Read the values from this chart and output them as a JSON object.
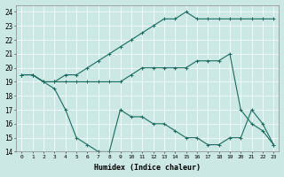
{
  "xlabel": "Humidex (Indice chaleur)",
  "x_ticks": [
    0,
    1,
    2,
    3,
    4,
    5,
    6,
    7,
    8,
    9,
    10,
    11,
    12,
    13,
    14,
    15,
    16,
    17,
    18,
    19,
    20,
    21,
    22,
    23
  ],
  "ylim": [
    14,
    24.5
  ],
  "xlim": [
    -0.5,
    23.5
  ],
  "yticks": [
    14,
    15,
    16,
    17,
    18,
    19,
    20,
    21,
    22,
    23,
    24
  ],
  "bg_color": "#cce8e5",
  "line_color": "#1a6b5e",
  "series": [
    {
      "x": [
        0,
        1,
        2,
        3,
        4,
        5,
        6,
        7,
        8,
        9,
        10,
        11,
        12,
        13,
        14,
        15,
        16,
        17,
        18,
        19,
        20,
        21,
        22,
        23
      ],
      "y": [
        19.5,
        19.5,
        19.0,
        19.0,
        19.5,
        19.5,
        20.0,
        20.5,
        21.0,
        21.5,
        22.0,
        22.5,
        23.0,
        23.5,
        23.5,
        24.0,
        23.5,
        23.5,
        23.5,
        23.5,
        23.5,
        23.5,
        23.5,
        23.5
      ]
    },
    {
      "x": [
        0,
        1,
        2,
        3,
        4,
        5,
        6,
        7,
        8,
        9,
        10,
        11,
        12,
        13,
        14,
        15,
        16,
        17,
        18,
        19,
        20,
        21,
        22,
        23
      ],
      "y": [
        19.5,
        19.5,
        19.0,
        19.0,
        19.0,
        19.0,
        19.0,
        19.0,
        19.0,
        19.0,
        19.5,
        20.0,
        20.0,
        20.0,
        20.0,
        20.0,
        20.5,
        20.5,
        20.5,
        21.0,
        17.0,
        16.0,
        15.5,
        14.5
      ]
    },
    {
      "x": [
        0,
        1,
        2,
        3,
        4,
        5,
        6,
        7,
        8,
        9,
        10,
        11,
        12,
        13,
        14,
        15,
        16,
        17,
        18,
        19,
        20,
        21,
        22,
        23
      ],
      "y": [
        19.5,
        19.5,
        19.0,
        18.5,
        17.0,
        15.0,
        14.5,
        14.0,
        14.0,
        17.0,
        16.5,
        16.5,
        16.0,
        16.0,
        15.5,
        15.0,
        15.0,
        14.5,
        14.5,
        15.0,
        15.0,
        17.0,
        16.0,
        14.5
      ]
    }
  ]
}
